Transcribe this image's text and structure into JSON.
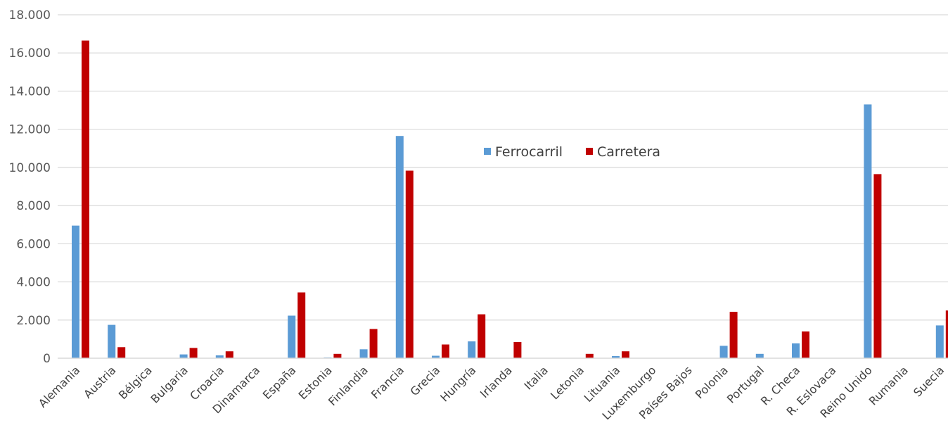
{
  "chart_data": {
    "type": "bar",
    "title": "",
    "xlabel": "",
    "ylabel": "",
    "ylim": [
      0,
      18000
    ],
    "ytick_values": [
      0,
      2000,
      4000,
      6000,
      8000,
      10000,
      12000,
      14000,
      16000,
      18000
    ],
    "ytick_labels": [
      "0",
      "2.000",
      "4.000",
      "6.000",
      "8.000",
      "10.000",
      "12.000",
      "14.000",
      "16.000",
      "18.000"
    ],
    "grid": true,
    "legend_position": "top-center",
    "categories": [
      "Alemania",
      "Austria",
      "Bélgica",
      "Bulgaria",
      "Croacia",
      "Dinamarca",
      "España",
      "Estonia",
      "Finlandia",
      "Francia",
      "Grecia",
      "Hungría",
      "Irlanda",
      "Italia",
      "Letonia",
      "Lituania",
      "Luxemburgo",
      "Países Bajos",
      "Polonia",
      "Portugal",
      "R. Checa",
      "R. Eslovaca",
      "Reino Unido",
      "Rumania",
      "Suecia"
    ],
    "series": [
      {
        "name": "Ferrocarril",
        "color": "#5B9BD5",
        "values": [
          6950,
          1750,
          0,
          200,
          150,
          0,
          2230,
          40,
          470,
          11650,
          130,
          880,
          0,
          0,
          0,
          110,
          0,
          0,
          650,
          230,
          780,
          0,
          13300,
          0,
          1720
        ]
      },
      {
        "name": "Carretera",
        "color": "#C00000",
        "values": [
          16650,
          580,
          0,
          540,
          360,
          0,
          3450,
          230,
          1530,
          9830,
          720,
          2300,
          850,
          0,
          230,
          360,
          0,
          0,
          2430,
          0,
          1400,
          0,
          9650,
          0,
          2500
        ]
      }
    ]
  }
}
